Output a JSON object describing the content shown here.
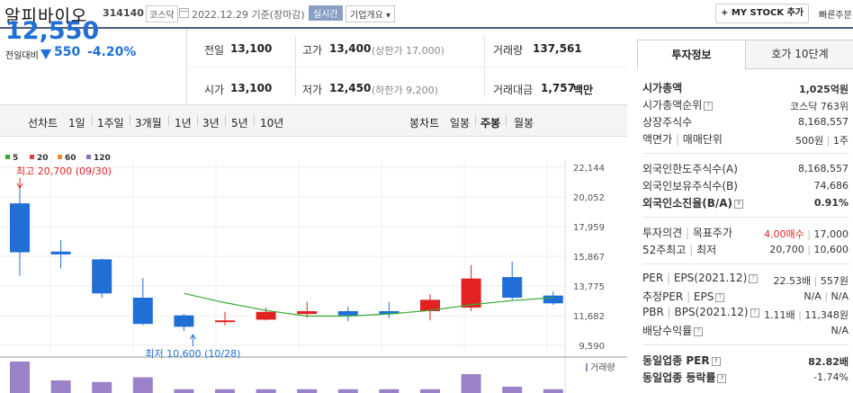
{
  "header": {
    "stock_name": "알피바이오",
    "stock_code": "314140",
    "market": "코스닥",
    "date": "2022.12.29 기준(장마감)",
    "realtime": "실시간",
    "company_overview": "기업개요",
    "mystock_btn": "+ MY STOCK 추가",
    "quick_order": "빠른주문"
  },
  "price": {
    "current": "12,550",
    "change_label": "전일대비",
    "change_value": "550",
    "change_rate": "-4.20%"
  },
  "stats": {
    "prev_label": "전일",
    "prev_value": "13,100",
    "open_label": "시가",
    "open_value": "13,100",
    "high_label": "고가",
    "high_value": "13,400",
    "upper_limit": "(상한가 17,000)",
    "low_label": "저가",
    "low_value": "12,450",
    "lower_limit": "(하한가 9,200)",
    "volume_label": "거래량",
    "volume_value": "137,561",
    "amount_label": "거래대금",
    "amount_value": "1,757",
    "amount_unit": "백만"
  },
  "period_bar": {
    "line_label": "선차트",
    "periods": [
      "1일",
      "1주일",
      "3개월",
      "1년",
      "3년",
      "5년",
      "10년"
    ],
    "candle_label": "봉차트",
    "candle_types": [
      "일봉",
      "주봉",
      "월봉"
    ],
    "active_candle": "주봉"
  },
  "colors": {
    "up": "#e22222",
    "down": "#1f6fd6",
    "ma5": "#33aa33",
    "ma20": "#e23c3c",
    "ma60": "#f08b2e",
    "ma120": "#8c6fc2",
    "volume": "#9b82c8",
    "header_line": "#4e5d77"
  },
  "chart_data": {
    "type": "candlestick",
    "legend": [
      "5",
      "20",
      "60",
      "120"
    ],
    "y_ticks": [
      "22,144",
      "20,052",
      "17,959",
      "15,867",
      "13,775",
      "11,682",
      "9,590"
    ],
    "ylim": [
      9590,
      22144
    ],
    "high_note": "최고 20,700 (09/30)",
    "low_note": "최저 10,600 (10/28)",
    "volume_label": "거래량",
    "candles": [
      {
        "open": 19600,
        "close": 16150,
        "high": 20700,
        "low": 14500
      },
      {
        "open": 16200,
        "close": 16000,
        "high": 17000,
        "low": 15000
      },
      {
        "open": 15650,
        "close": 13250,
        "high": 15700,
        "low": 12950
      },
      {
        "open": 12950,
        "close": 11100,
        "high": 14350,
        "low": 11000
      },
      {
        "open": 11700,
        "close": 10900,
        "high": 11800,
        "low": 10600
      },
      {
        "open": 11250,
        "close": 11350,
        "high": 11950,
        "low": 11000
      },
      {
        "open": 11400,
        "close": 11950,
        "high": 12250,
        "low": 11350
      },
      {
        "open": 11800,
        "close": 12000,
        "high": 12650,
        "low": 11550
      },
      {
        "open": 12000,
        "close": 11700,
        "high": 12300,
        "low": 11300
      },
      {
        "open": 12000,
        "close": 11800,
        "high": 12650,
        "low": 11500
      },
      {
        "open": 12000,
        "close": 12800,
        "high": 13200,
        "low": 11350
      },
      {
        "open": 12250,
        "close": 14300,
        "high": 15250,
        "low": 12000
      },
      {
        "open": 14400,
        "close": 12950,
        "high": 15500,
        "low": 12800
      },
      {
        "open": 13100,
        "close": 12550,
        "high": 13400,
        "low": 12450
      }
    ],
    "ma5": [
      null,
      null,
      null,
      null,
      13250,
      12600,
      12050,
      11650,
      11650,
      11800,
      12050,
      12450,
      12750,
      12950
    ],
    "volume": [
      100,
      40,
      35,
      50,
      12,
      12,
      12,
      12,
      12,
      12,
      12,
      60,
      20,
      12
    ]
  },
  "right_panel": {
    "tab_info": "투자정보",
    "tab_quote": "호가 10단계",
    "market_cap_label": "시가총액",
    "market_cap_value": "1,025억원",
    "market_cap_rank_label": "시가총액순위",
    "market_cap_rank_value": "코스닥 763위",
    "listed_shares_label": "상장주식수",
    "listed_shares_value": "8,168,557",
    "par_label": "액면가",
    "trade_unit_label": "매매단위",
    "par_value": "500원",
    "trade_unit_value": "1주",
    "foreign_limit_label": "외국인한도주식수(A)",
    "foreign_limit_value": "8,168,557",
    "foreign_held_label": "외국인보유주식수(B)",
    "foreign_held_value": "74,686",
    "foreign_ratio_label": "외국인소진율(B/A)",
    "foreign_ratio_value": "0.91%",
    "opinion_label": "투자의견",
    "target_label": "목표주가",
    "opinion_value": "4.00매수",
    "target_value": "17,000",
    "week52_high_label": "52주최고",
    "week52_low_label": "최저",
    "week52_high_value": "20,700",
    "week52_low_value": "10,600",
    "per_label": "PER",
    "eps_label": "EPS(2021.12)",
    "per_value": "22.53배",
    "eps_value": "557원",
    "est_per_label": "추정PER",
    "est_eps_label": "EPS",
    "est_per_value": "N/A",
    "est_eps_value": "N/A",
    "pbr_label": "PBR",
    "bps_label": "BPS(2021.12)",
    "pbr_value": "1.11배",
    "bps_value": "11,348원",
    "dividend_label": "배당수익률",
    "dividend_value": "N/A",
    "sector_per_label": "동일업종 PER",
    "sector_per_value": "82.82배",
    "sector_rate_label": "동일업종 등락률",
    "sector_rate_value": "-1.74%"
  }
}
